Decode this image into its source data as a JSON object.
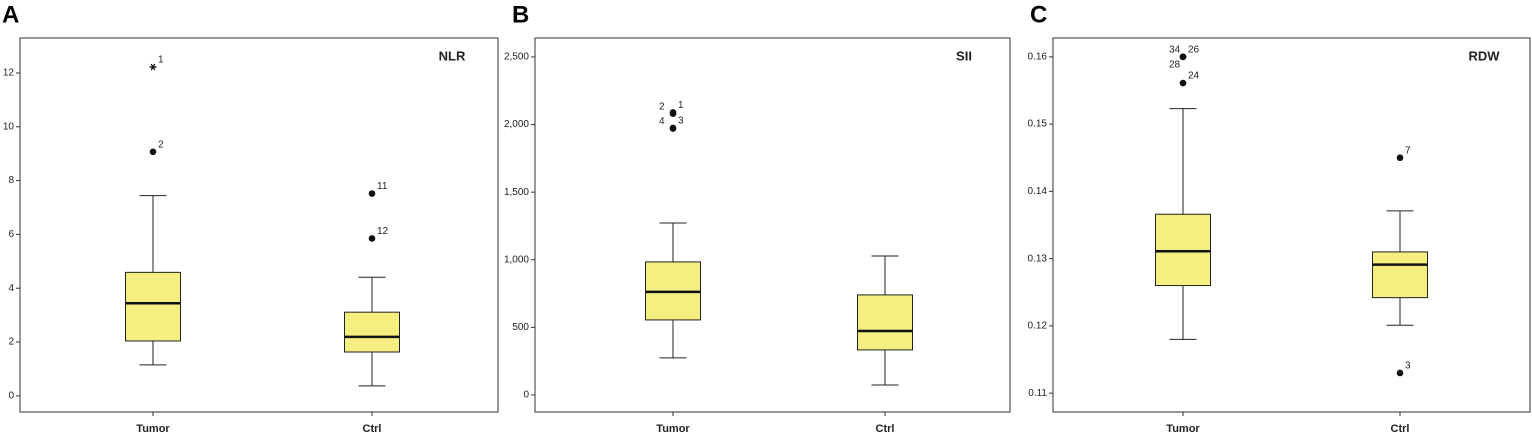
{
  "chart_data": [
    {
      "type": "box",
      "panel": "A",
      "title": "NLR",
      "categories": [
        "Tumor",
        "Ctrl"
      ],
      "color": "#f4ef80",
      "boxes": [
        {
          "min": 1.15,
          "q1": 2.04,
          "median": 3.44,
          "q3": 4.59,
          "max": 7.44,
          "outliers": [
            {
              "value": 12.22,
              "label": "1",
              "extreme": true
            },
            {
              "value": 9.07,
              "label": "2"
            }
          ]
        },
        {
          "min": 0.37,
          "q1": 1.63,
          "median": 2.19,
          "q3": 3.11,
          "max": 4.41,
          "outliers": [
            {
              "value": 7.52,
              "label": "11"
            },
            {
              "value": 5.85,
              "label": "12"
            }
          ]
        }
      ],
      "ylim": [
        -0.6,
        13.3
      ],
      "yticks": [
        0,
        2,
        4,
        6,
        8,
        10,
        12
      ]
    },
    {
      "type": "box",
      "panel": "B",
      "title": "SII",
      "categories": [
        "Tumor",
        "Ctrl"
      ],
      "color": "#f4ef80",
      "boxes": [
        {
          "min": 274,
          "q1": 555,
          "median": 762,
          "q3": 984,
          "max": 1272,
          "outliers": [
            {
              "value": 2090,
              "label": "1"
            },
            {
              "value": 2080,
              "label": "2"
            },
            {
              "value": 1975,
              "label": "3"
            },
            {
              "value": 1970,
              "label": "4"
            }
          ]
        },
        {
          "min": 74,
          "q1": 333,
          "median": 473,
          "q3": 740,
          "max": 1028,
          "outliers": []
        }
      ],
      "ylim": [
        -126,
        2640
      ],
      "yticks": [
        0,
        500,
        {
          "value": 1000,
          "label": "1,000"
        },
        {
          "value": 1500,
          "label": "1,500"
        },
        {
          "value": 2000,
          "label": "2,000"
        },
        {
          "value": 2500,
          "label": "2,500"
        }
      ]
    },
    {
      "type": "box",
      "panel": "C",
      "title": "RDW",
      "categories": [
        "Tumor",
        "Ctrl"
      ],
      "color": "#f4ef80",
      "boxes": [
        {
          "min": 0.118,
          "q1": 0.126,
          "median": 0.1311,
          "q3": 0.1366,
          "max": 0.1523,
          "outliers": [
            {
              "value": 0.16,
              "label": "26"
            },
            {
              "value": 0.16,
              "label": "34"
            },
            {
              "value": 0.16,
              "label": "28"
            },
            {
              "value": 0.1561,
              "label": "24"
            }
          ]
        },
        {
          "min": 0.1201,
          "q1": 0.1242,
          "median": 0.1291,
          "q3": 0.131,
          "max": 0.1371,
          "outliers": [
            {
              "value": 0.145,
              "label": "7"
            },
            {
              "value": 0.113,
              "label": "3"
            }
          ]
        }
      ],
      "ylim": [
        0.1072,
        0.1628
      ],
      "yticks": [
        0.11,
        0.12,
        0.13,
        0.14,
        0.15,
        0.16
      ]
    }
  ]
}
